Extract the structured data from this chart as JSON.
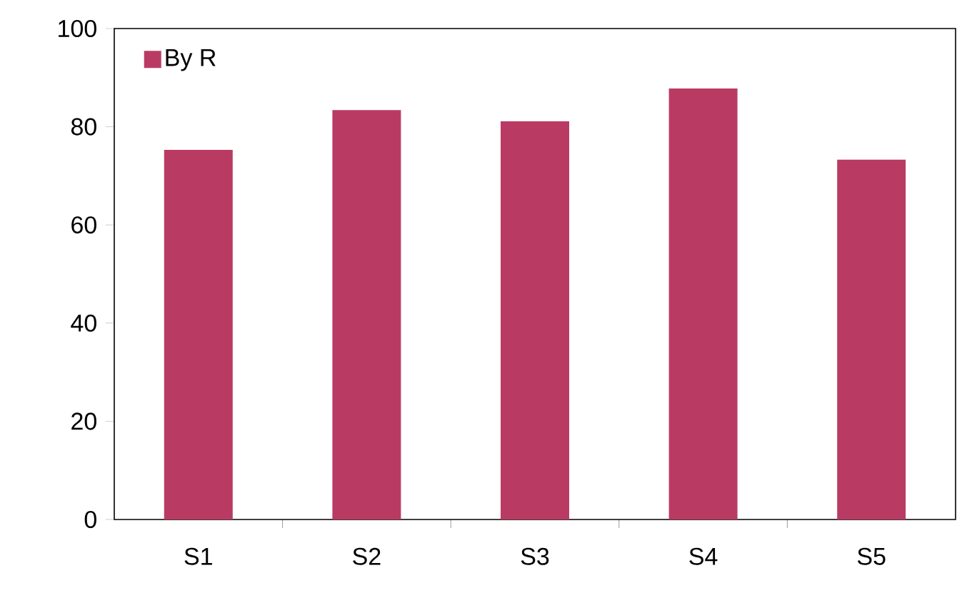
{
  "chart_data": {
    "type": "bar",
    "categories": [
      "S1",
      "S2",
      "S3",
      "S4",
      "S5"
    ],
    "series": [
      {
        "name": "By R",
        "color": "#b93b63",
        "values": [
          75.3,
          83.4,
          81.1,
          87.8,
          73.3
        ]
      }
    ],
    "ylim": [
      0,
      100
    ],
    "yticks": [
      0,
      20,
      40,
      60,
      80,
      100
    ],
    "legend": "top left"
  }
}
